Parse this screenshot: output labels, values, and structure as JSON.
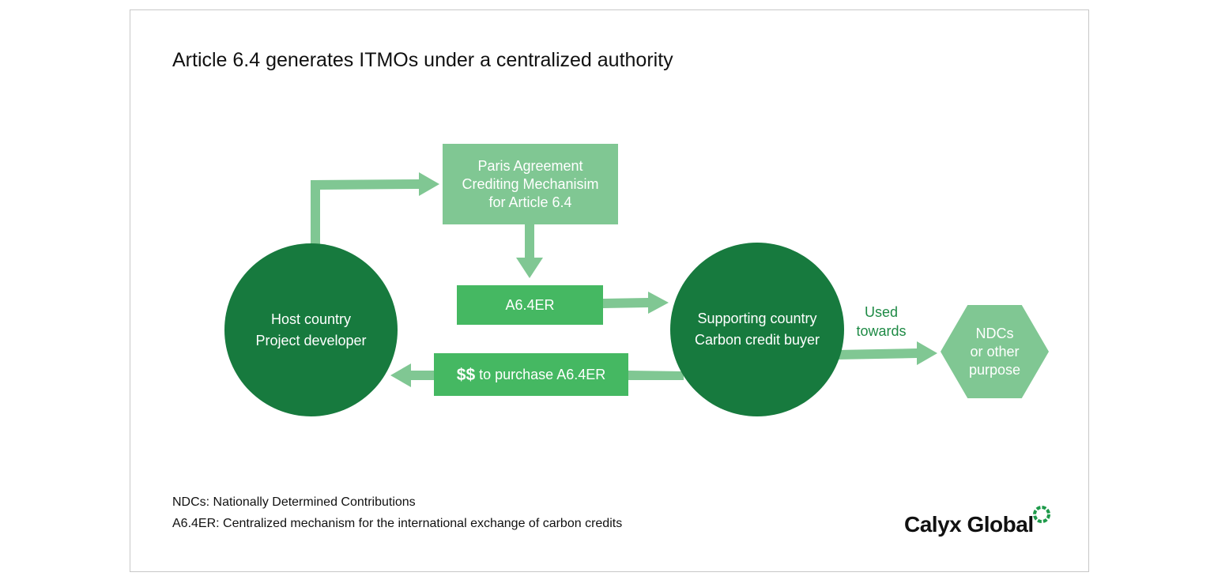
{
  "title": "Article 6.4 generates ITMOs under a centralized authority",
  "nodes": {
    "host": [
      "Host country",
      "Project developer"
    ],
    "mechanism": [
      "Paris Agreement",
      "Crediting Mechanisim",
      "for Article 6.4"
    ],
    "a64er": "A6.4ER",
    "payment": {
      "symbol": "$$",
      "text": " to purchase A6.4ER"
    },
    "buyer": [
      "Supporting country",
      "Carbon credit buyer"
    ],
    "ndc": [
      "NDCs",
      "or other",
      "purpose"
    ]
  },
  "edge_labels": {
    "used_towards": [
      "Used",
      "towards"
    ]
  },
  "footnotes": [
    "NDCs: Nationally Determined Contributions",
    "A6.4ER: Centralized mechanism for the international exchange of carbon credits"
  ],
  "logo": "Calyx Global",
  "colors": {
    "dark_green": "#177a3e",
    "mid_green": "#45b862",
    "light_green": "#80c793"
  }
}
